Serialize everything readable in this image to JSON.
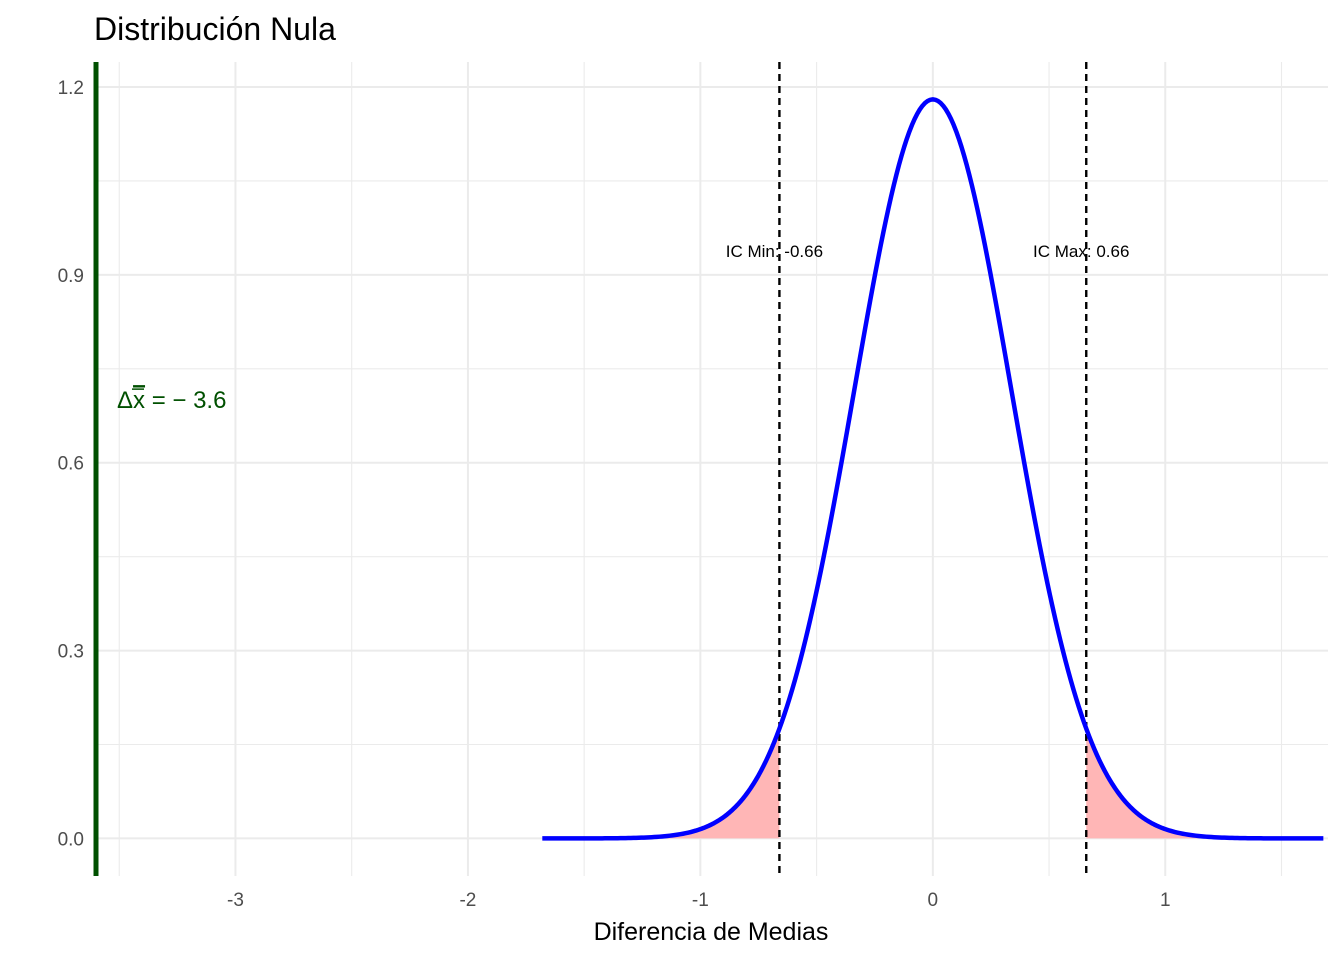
{
  "chart_data": {
    "type": "line",
    "title": "Distribución Nula",
    "xlabel": "Diferencia de Medias",
    "ylabel": "",
    "xlim": [
      -3.6,
      1.7
    ],
    "ylim": [
      -0.06,
      1.24
    ],
    "x_ticks": [
      -3,
      -2,
      -1,
      0,
      1
    ],
    "x_tick_labels": [
      "-3",
      "-2",
      "-1",
      "0",
      "1"
    ],
    "y_ticks": [
      0.0,
      0.3,
      0.6,
      0.9,
      1.2
    ],
    "y_tick_labels": [
      "0.0",
      "0.3",
      "0.6",
      "0.9",
      "1.2"
    ],
    "grid": true,
    "density": {
      "distribution": "normal",
      "mean": 0,
      "sd": 0.338,
      "x_range": [
        -1.68,
        1.68
      ],
      "color": "#0000ff"
    },
    "critical_lines": [
      {
        "x": -0.66,
        "label": "IC Min: -0.66"
      },
      {
        "x": 0.66,
        "label": "IC Max: 0.66"
      }
    ],
    "critical_label_y": 0.94,
    "shaded_tails": {
      "color": "#ffb6b6"
    },
    "observed": {
      "x": -3.6,
      "label_prefix": "Δ",
      "label_symbol": "x",
      "label_suffix": " = − 3.6",
      "label_y": 0.7,
      "color": "#005000"
    }
  }
}
